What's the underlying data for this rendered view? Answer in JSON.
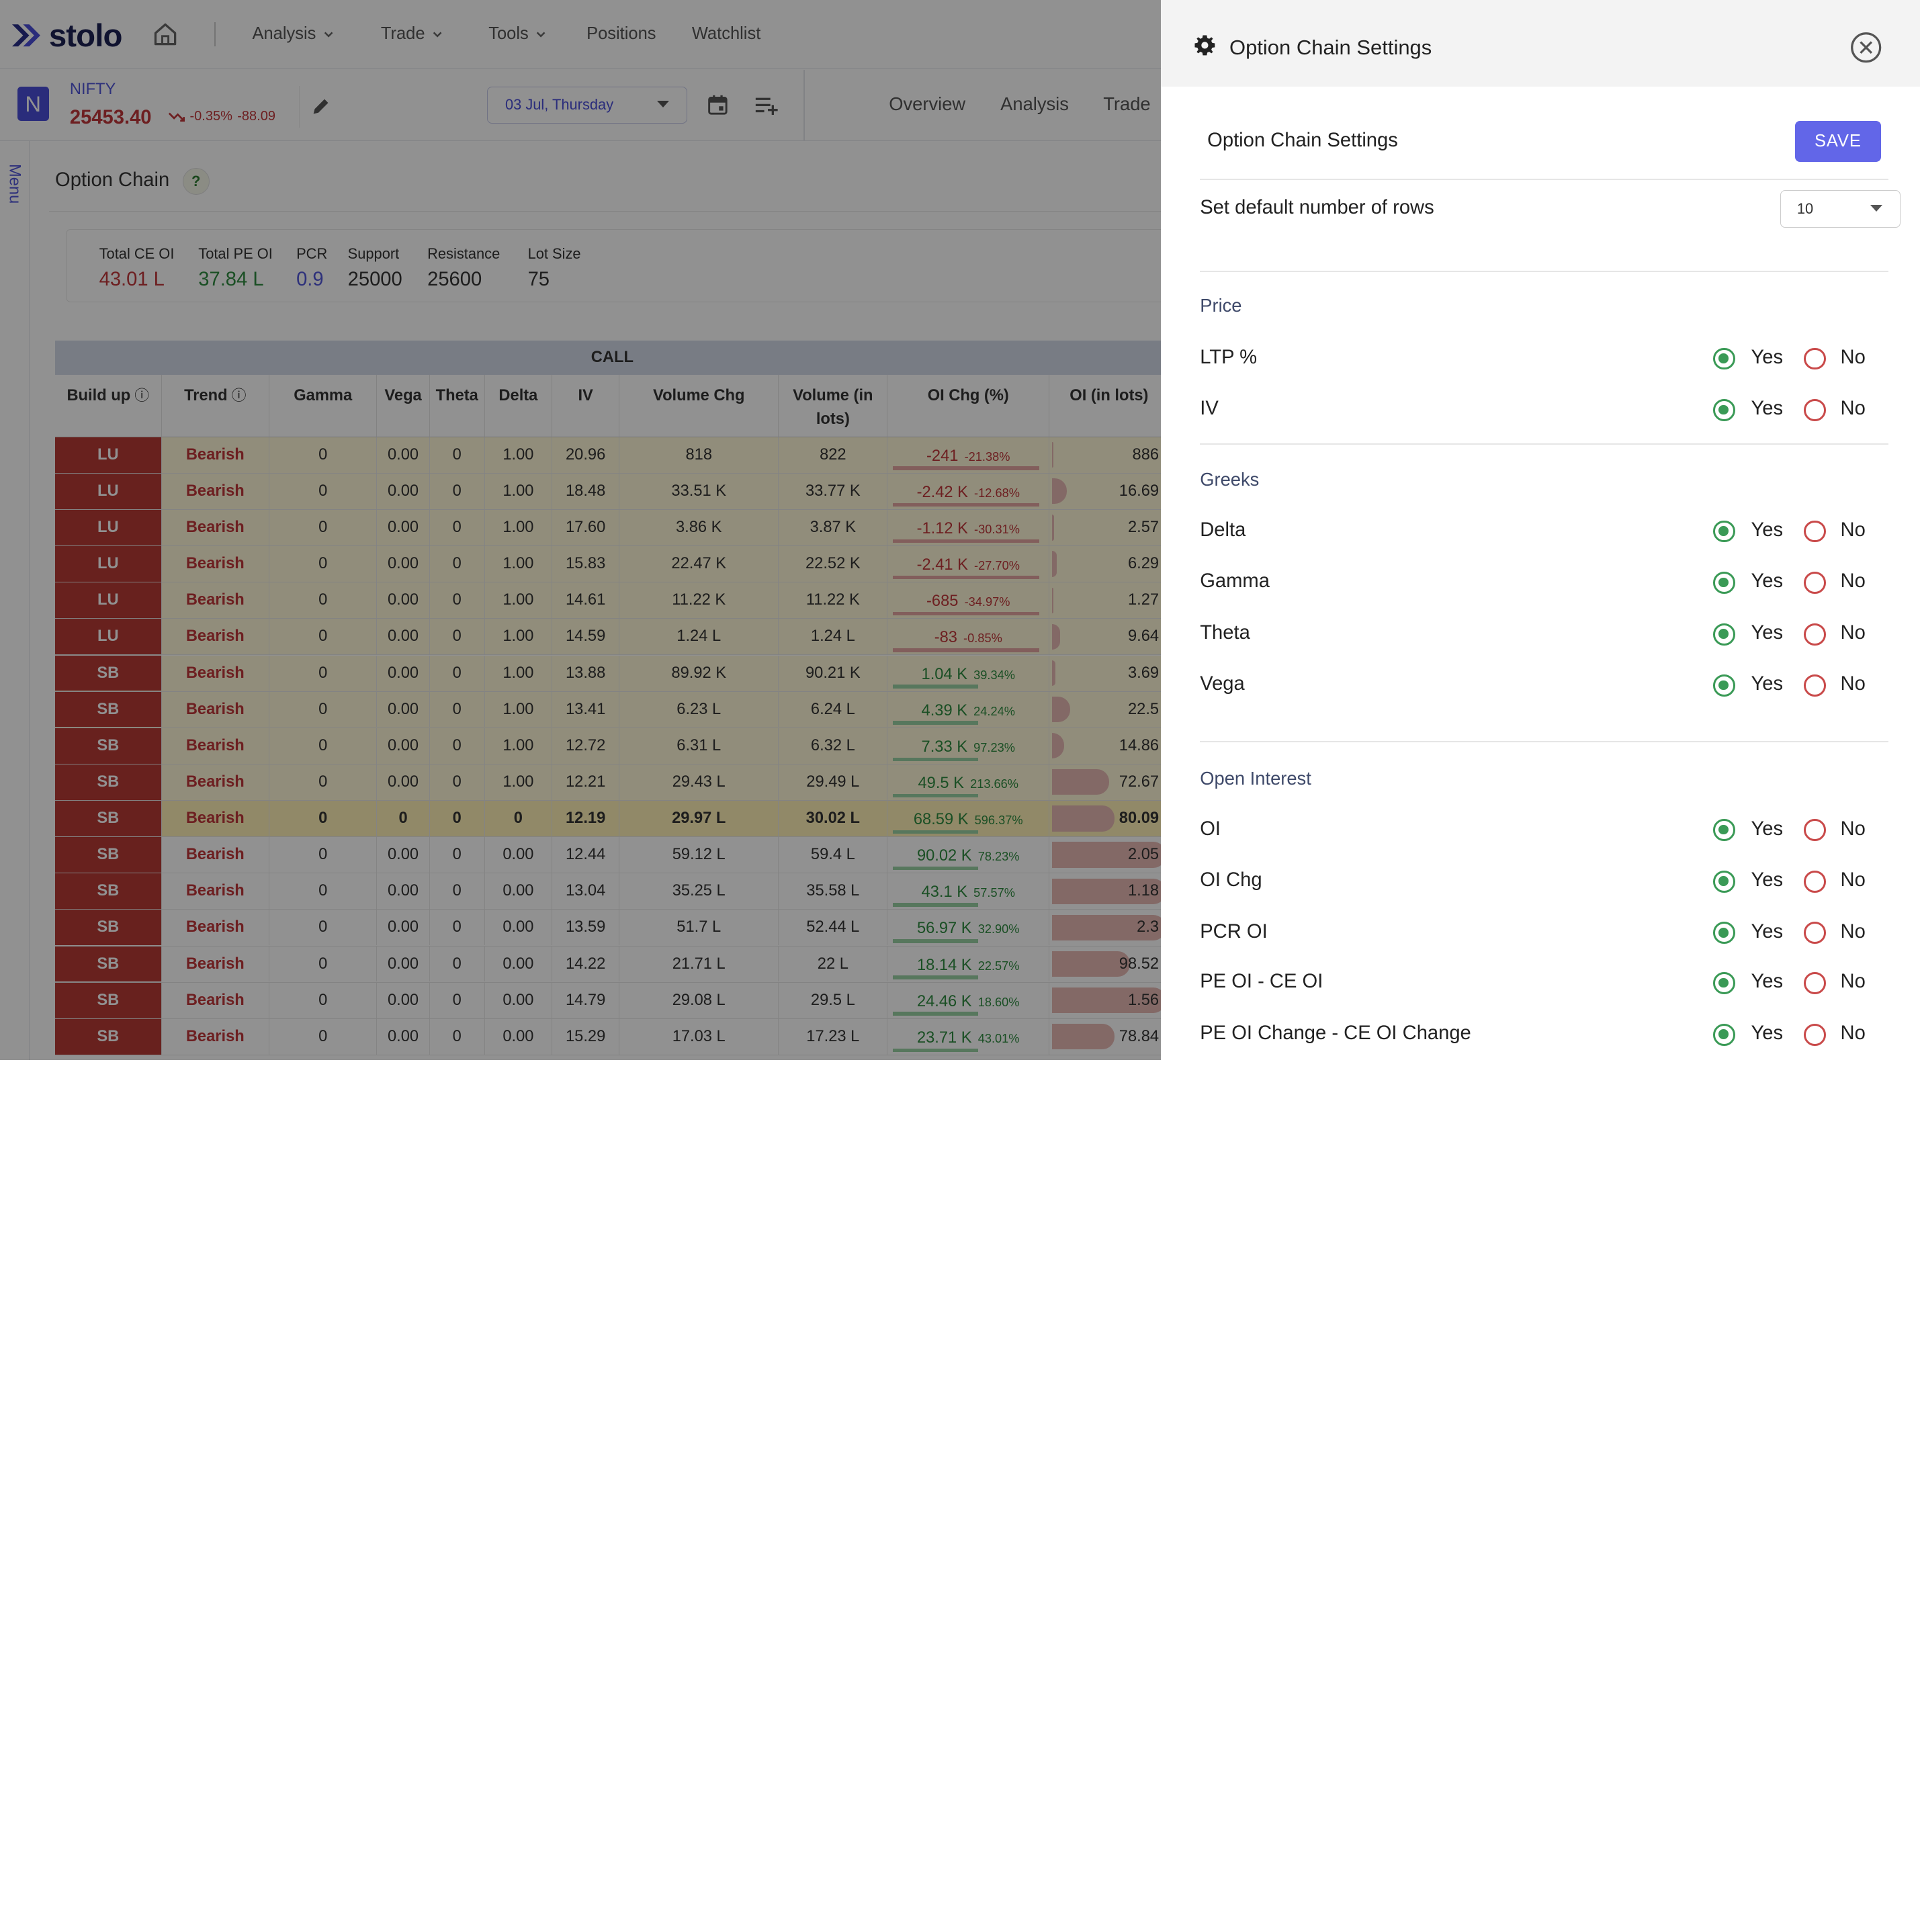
{
  "brand": {
    "name": "stolo",
    "accent": "#4a4ed8"
  },
  "nav": {
    "items": [
      "Analysis",
      "Trade",
      "Tools",
      "Positions",
      "Watchlist"
    ]
  },
  "instrument": {
    "badge": "N",
    "symbol": "NIFTY",
    "price": "25453.40",
    "change_pct": "-0.35%",
    "change_abs": "-88.09"
  },
  "date_select": {
    "value": "03 Jul, Thursday"
  },
  "tabs": [
    "Overview",
    "Analysis",
    "Trade"
  ],
  "side_menu": {
    "label": "Menu"
  },
  "option_chain": {
    "title": "Option Chain",
    "help": "?",
    "stats": [
      {
        "label": "Total CE OI",
        "value": "43.01 L",
        "color": "#c0373a"
      },
      {
        "label": "Total PE OI",
        "value": "37.84 L",
        "color": "#2e8b40"
      },
      {
        "label": "PCR",
        "value": "0.9",
        "color": "#5156d8"
      },
      {
        "label": "Support",
        "value": "25000",
        "color": "#333333"
      },
      {
        "label": "Resistance",
        "value": "25600",
        "color": "#333333"
      },
      {
        "label": "Lot Size",
        "value": "75",
        "color": "#333333"
      }
    ],
    "call_label": "CALL",
    "columns": [
      "Build up",
      "Trend",
      "Gamma",
      "Vega",
      "Theta",
      "Delta",
      "IV",
      "Volume Chg",
      "Volume (in lots)",
      "OI Chg (%)",
      "OI (in lots)"
    ],
    "rows": [
      {
        "buildup": "LU",
        "trend": "Bearish",
        "gamma": "0",
        "vega": "0.00",
        "theta": "0",
        "delta": "1.00",
        "iv": "20.96",
        "vol_chg": "818",
        "vol_lots": "822",
        "oi_chg": "-241",
        "oi_chg_pct": "-21.38%",
        "oi_lots": "886",
        "oi_level": 0.01,
        "zone": "itm"
      },
      {
        "buildup": "LU",
        "trend": "Bearish",
        "gamma": "0",
        "vega": "0.00",
        "theta": "0",
        "delta": "1.00",
        "iv": "18.48",
        "vol_chg": "33.51 K",
        "vol_lots": "33.77 K",
        "oi_chg": "-2.42 K",
        "oi_chg_pct": "-12.68%",
        "oi_lots": "16.69",
        "oi_level": 0.12,
        "zone": "itm"
      },
      {
        "buildup": "LU",
        "trend": "Bearish",
        "gamma": "0",
        "vega": "0.00",
        "theta": "0",
        "delta": "1.00",
        "iv": "17.60",
        "vol_chg": "3.86 K",
        "vol_lots": "3.87 K",
        "oi_chg": "-1.12 K",
        "oi_chg_pct": "-30.31%",
        "oi_lots": "2.57",
        "oi_level": 0.02,
        "zone": "itm"
      },
      {
        "buildup": "LU",
        "trend": "Bearish",
        "gamma": "0",
        "vega": "0.00",
        "theta": "0",
        "delta": "1.00",
        "iv": "15.83",
        "vol_chg": "22.47 K",
        "vol_lots": "22.52 K",
        "oi_chg": "-2.41 K",
        "oi_chg_pct": "-27.70%",
        "oi_lots": "6.29",
        "oi_level": 0.04,
        "zone": "itm"
      },
      {
        "buildup": "LU",
        "trend": "Bearish",
        "gamma": "0",
        "vega": "0.00",
        "theta": "0",
        "delta": "1.00",
        "iv": "14.61",
        "vol_chg": "11.22 K",
        "vol_lots": "11.22 K",
        "oi_chg": "-685",
        "oi_chg_pct": "-34.97%",
        "oi_lots": "1.27",
        "oi_level": 0.01,
        "zone": "itm"
      },
      {
        "buildup": "LU",
        "trend": "Bearish",
        "gamma": "0",
        "vega": "0.00",
        "theta": "0",
        "delta": "1.00",
        "iv": "14.59",
        "vol_chg": "1.24 L",
        "vol_lots": "1.24 L",
        "oi_chg": "-83",
        "oi_chg_pct": "-0.85%",
        "oi_lots": "9.64",
        "oi_level": 0.07,
        "zone": "itm"
      },
      {
        "buildup": "SB",
        "trend": "Bearish",
        "gamma": "0",
        "vega": "0.00",
        "theta": "0",
        "delta": "1.00",
        "iv": "13.88",
        "vol_chg": "89.92 K",
        "vol_lots": "90.21 K",
        "oi_chg": "1.04 K",
        "oi_chg_pct": "39.34%",
        "oi_lots": "3.69",
        "oi_level": 0.03,
        "zone": "itm"
      },
      {
        "buildup": "SB",
        "trend": "Bearish",
        "gamma": "0",
        "vega": "0.00",
        "theta": "0",
        "delta": "1.00",
        "iv": "13.41",
        "vol_chg": "6.23 L",
        "vol_lots": "6.24 L",
        "oi_chg": "4.39 K",
        "oi_chg_pct": "24.24%",
        "oi_lots": "22.5",
        "oi_level": 0.15,
        "zone": "itm"
      },
      {
        "buildup": "SB",
        "trend": "Bearish",
        "gamma": "0",
        "vega": "0.00",
        "theta": "0",
        "delta": "1.00",
        "iv": "12.72",
        "vol_chg": "6.31 L",
        "vol_lots": "6.32 L",
        "oi_chg": "7.33 K",
        "oi_chg_pct": "97.23%",
        "oi_lots": "14.86",
        "oi_level": 0.1,
        "zone": "itm"
      },
      {
        "buildup": "SB",
        "trend": "Bearish",
        "gamma": "0",
        "vega": "0.00",
        "theta": "0",
        "delta": "1.00",
        "iv": "12.21",
        "vol_chg": "29.43 L",
        "vol_lots": "29.49 L",
        "oi_chg": "49.5 K",
        "oi_chg_pct": "213.66%",
        "oi_lots": "72.67",
        "oi_level": 0.48,
        "zone": "itm"
      },
      {
        "buildup": "SB",
        "trend": "Bearish",
        "gamma": "0",
        "vega": "0",
        "theta": "0",
        "delta": "0",
        "iv": "12.19",
        "vol_chg": "29.97 L",
        "vol_lots": "30.02 L",
        "oi_chg": "68.59 K",
        "oi_chg_pct": "596.37%",
        "oi_lots": "80.09",
        "oi_level": 0.52,
        "zone": "atm"
      },
      {
        "buildup": "SB",
        "trend": "Bearish",
        "gamma": "0",
        "vega": "0.00",
        "theta": "0",
        "delta": "0.00",
        "iv": "12.44",
        "vol_chg": "59.12 L",
        "vol_lots": "59.4 L",
        "oi_chg": "90.02 K",
        "oi_chg_pct": "78.23%",
        "oi_lots": "2.05",
        "oi_level": 0.95,
        "zone": "otm"
      },
      {
        "buildup": "SB",
        "trend": "Bearish",
        "gamma": "0",
        "vega": "0.00",
        "theta": "0",
        "delta": "0.00",
        "iv": "13.04",
        "vol_chg": "35.25 L",
        "vol_lots": "35.58 L",
        "oi_chg": "43.1 K",
        "oi_chg_pct": "57.57%",
        "oi_lots": "1.18",
        "oi_level": 0.95,
        "zone": "otm"
      },
      {
        "buildup": "SB",
        "trend": "Bearish",
        "gamma": "0",
        "vega": "0.00",
        "theta": "0",
        "delta": "0.00",
        "iv": "13.59",
        "vol_chg": "51.7 L",
        "vol_lots": "52.44 L",
        "oi_chg": "56.97 K",
        "oi_chg_pct": "32.90%",
        "oi_lots": "2.3",
        "oi_level": 0.95,
        "zone": "otm"
      },
      {
        "buildup": "SB",
        "trend": "Bearish",
        "gamma": "0",
        "vega": "0.00",
        "theta": "0",
        "delta": "0.00",
        "iv": "14.22",
        "vol_chg": "21.71 L",
        "vol_lots": "22 L",
        "oi_chg": "18.14 K",
        "oi_chg_pct": "22.57%",
        "oi_lots": "98.52",
        "oi_level": 0.65,
        "zone": "otm"
      },
      {
        "buildup": "SB",
        "trend": "Bearish",
        "gamma": "0",
        "vega": "0.00",
        "theta": "0",
        "delta": "0.00",
        "iv": "14.79",
        "vol_chg": "29.08 L",
        "vol_lots": "29.5 L",
        "oi_chg": "24.46 K",
        "oi_chg_pct": "18.60%",
        "oi_lots": "1.56",
        "oi_level": 0.95,
        "zone": "otm"
      },
      {
        "buildup": "SB",
        "trend": "Bearish",
        "gamma": "0",
        "vega": "0.00",
        "theta": "0",
        "delta": "0.00",
        "iv": "15.29",
        "vol_chg": "17.03 L",
        "vol_lots": "17.23 L",
        "oi_chg": "23.71 K",
        "oi_chg_pct": "43.01%",
        "oi_lots": "78.84",
        "oi_level": 0.52,
        "zone": "otm"
      }
    ]
  },
  "settings": {
    "header_title": "Option Chain Settings",
    "subtitle": "Option Chain Settings",
    "save_label": "SAVE",
    "rows_label": "Set default number of rows",
    "rows_value": "10",
    "yes_label": "Yes",
    "no_label": "No",
    "sections": [
      {
        "title": "Price",
        "options": [
          {
            "label": "LTP %",
            "value": "Yes"
          },
          {
            "label": "IV",
            "value": "Yes"
          }
        ]
      },
      {
        "title": "Greeks",
        "options": [
          {
            "label": "Delta",
            "value": "Yes"
          },
          {
            "label": "Gamma",
            "value": "Yes"
          },
          {
            "label": "Theta",
            "value": "Yes"
          },
          {
            "label": "Vega",
            "value": "Yes"
          }
        ]
      },
      {
        "title": "Open Interest",
        "options": [
          {
            "label": "OI",
            "value": "Yes"
          },
          {
            "label": "OI Chg",
            "value": "Yes"
          },
          {
            "label": "PCR OI",
            "value": "Yes"
          },
          {
            "label": "PE OI - CE OI",
            "value": "Yes"
          },
          {
            "label": "PE OI Change - CE OI Change",
            "value": "Yes"
          }
        ]
      }
    ]
  },
  "colors": {
    "negative": "#c0373a",
    "positive": "#2e8b40",
    "yes_radio": "#3a9a56",
    "no_radio": "#c94a4a",
    "save_button": "#6266e8"
  }
}
